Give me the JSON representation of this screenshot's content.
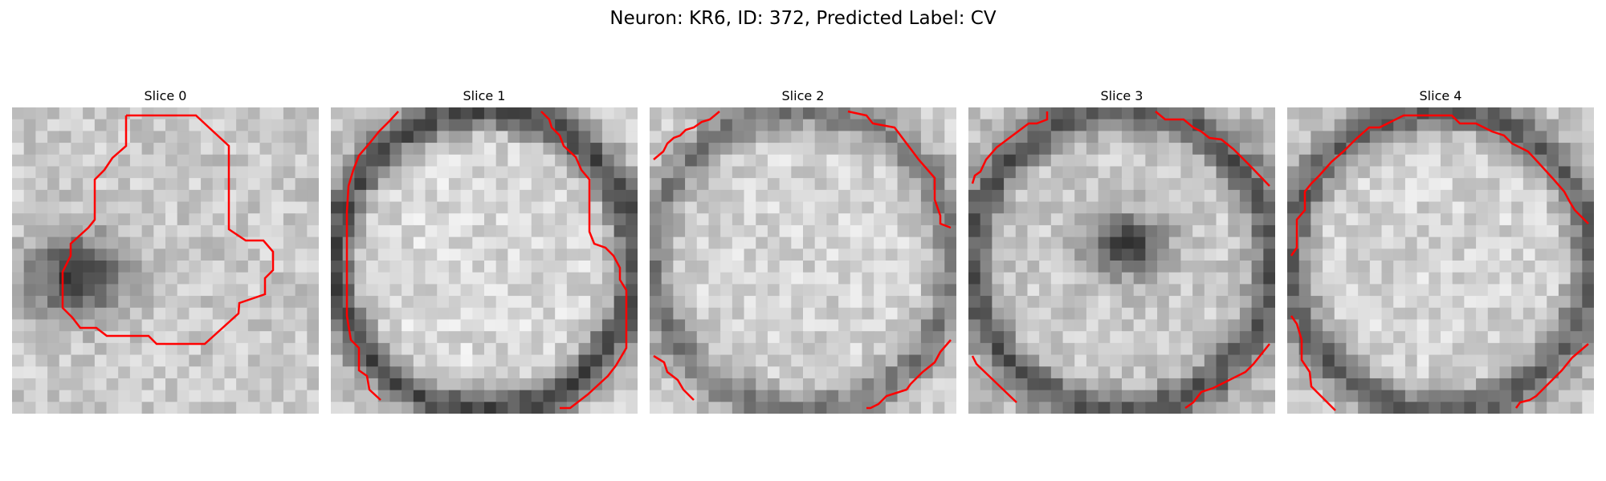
{
  "figure": {
    "title": "Neuron: KR6, ID: 372, Predicted Label: CV"
  },
  "panels": [
    {
      "title": "Slice 0",
      "seed": 11,
      "grid": 26,
      "bright": 0.8,
      "ring_dark": 0.0,
      "dark_blob": true
    },
    {
      "title": "Slice 1",
      "seed": 23,
      "grid": 26,
      "bright": 0.86,
      "ring_dark": 0.55,
      "dark_blob": false
    },
    {
      "title": "Slice 2",
      "seed": 37,
      "grid": 26,
      "bright": 0.84,
      "ring_dark": 0.35,
      "dark_blob": false
    },
    {
      "title": "Slice 3",
      "seed": 41,
      "grid": 26,
      "bright": 0.8,
      "ring_dark": 0.45,
      "dark_blob": true
    },
    {
      "title": "Slice 4",
      "seed": 53,
      "grid": 26,
      "bright": 0.84,
      "ring_dark": 0.45,
      "dark_blob": false
    }
  ],
  "contour_color": "#ff0000"
}
